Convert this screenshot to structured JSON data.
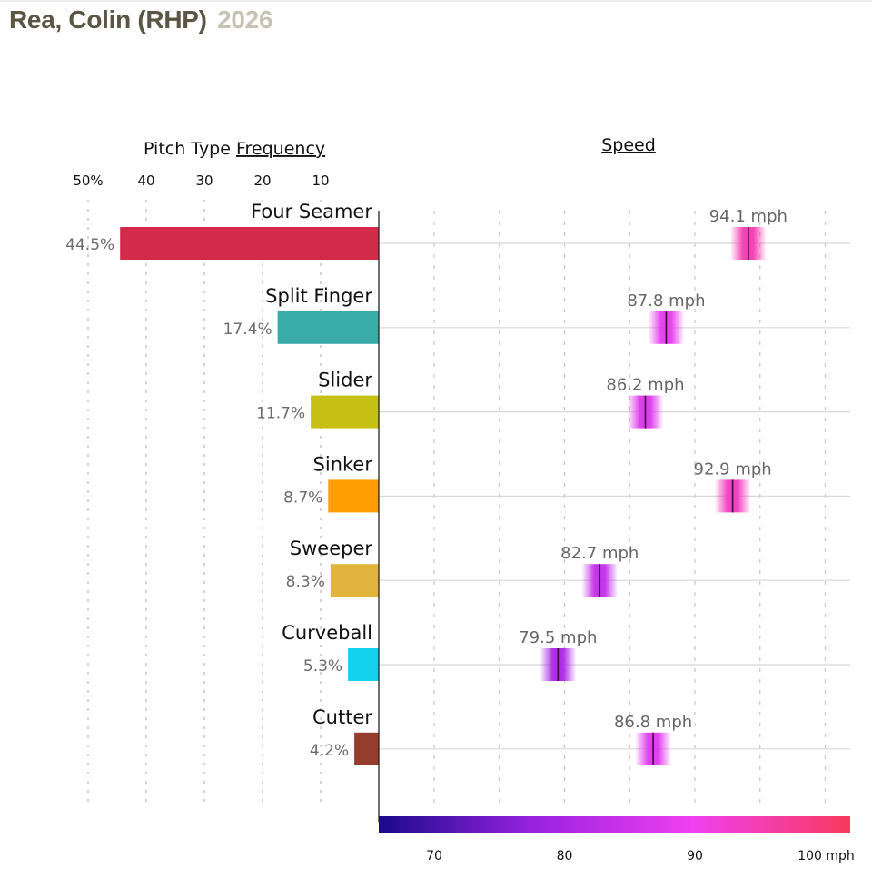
{
  "header": {
    "player": "Rea, Colin (RHP)",
    "season": "2026"
  },
  "chart_data": {
    "type": "bar",
    "panels": {
      "frequency": {
        "title_prefix": "Pitch Type ",
        "title_underlined": "Frequency",
        "tick_labels": [
          "50%",
          "40",
          "30",
          "20",
          "10"
        ],
        "tick_values": [
          50,
          40,
          30,
          20,
          10
        ],
        "xlim": [
          0,
          50
        ],
        "unit": "%",
        "grid": "dotted vertical"
      },
      "speed": {
        "title": "Speed",
        "tick_labels": [
          "70",
          "80",
          "90",
          "100 mph"
        ],
        "tick_values": [
          70,
          80,
          90,
          100
        ],
        "xlim": [
          65,
          101
        ],
        "unit": "mph",
        "grid": "dotted vertical",
        "colorbar": {
          "range": [
            65,
            101
          ],
          "colors": [
            "#1a0a8c",
            "#9a22e0",
            "#f040f0",
            "#f83a5c"
          ]
        }
      }
    },
    "categories": [
      "Four Seamer",
      "Split Finger",
      "Slider",
      "Sinker",
      "Sweeper",
      "Curveball",
      "Cutter"
    ],
    "series": [
      {
        "name": "Pitch Type Frequency",
        "values": [
          44.5,
          17.4,
          11.7,
          8.7,
          8.3,
          5.3,
          4.2
        ],
        "labels": [
          "44.5%",
          "17.4%",
          "11.7%",
          "8.7%",
          "8.3%",
          "5.3%",
          "4.2%"
        ],
        "colors": [
          "#d42a4a",
          "#3aaca8",
          "#c6c015",
          "#fe9c00",
          "#e2b43c",
          "#14d2ee",
          "#963c2c"
        ]
      },
      {
        "name": "Speed",
        "values": [
          94.1,
          87.8,
          86.2,
          92.9,
          82.7,
          79.5,
          86.8
        ],
        "labels": [
          "94.1 mph",
          "87.8 mph",
          "86.2 mph",
          "92.9 mph",
          "82.7 mph",
          "79.5 mph",
          "86.8 mph"
        ]
      }
    ]
  }
}
